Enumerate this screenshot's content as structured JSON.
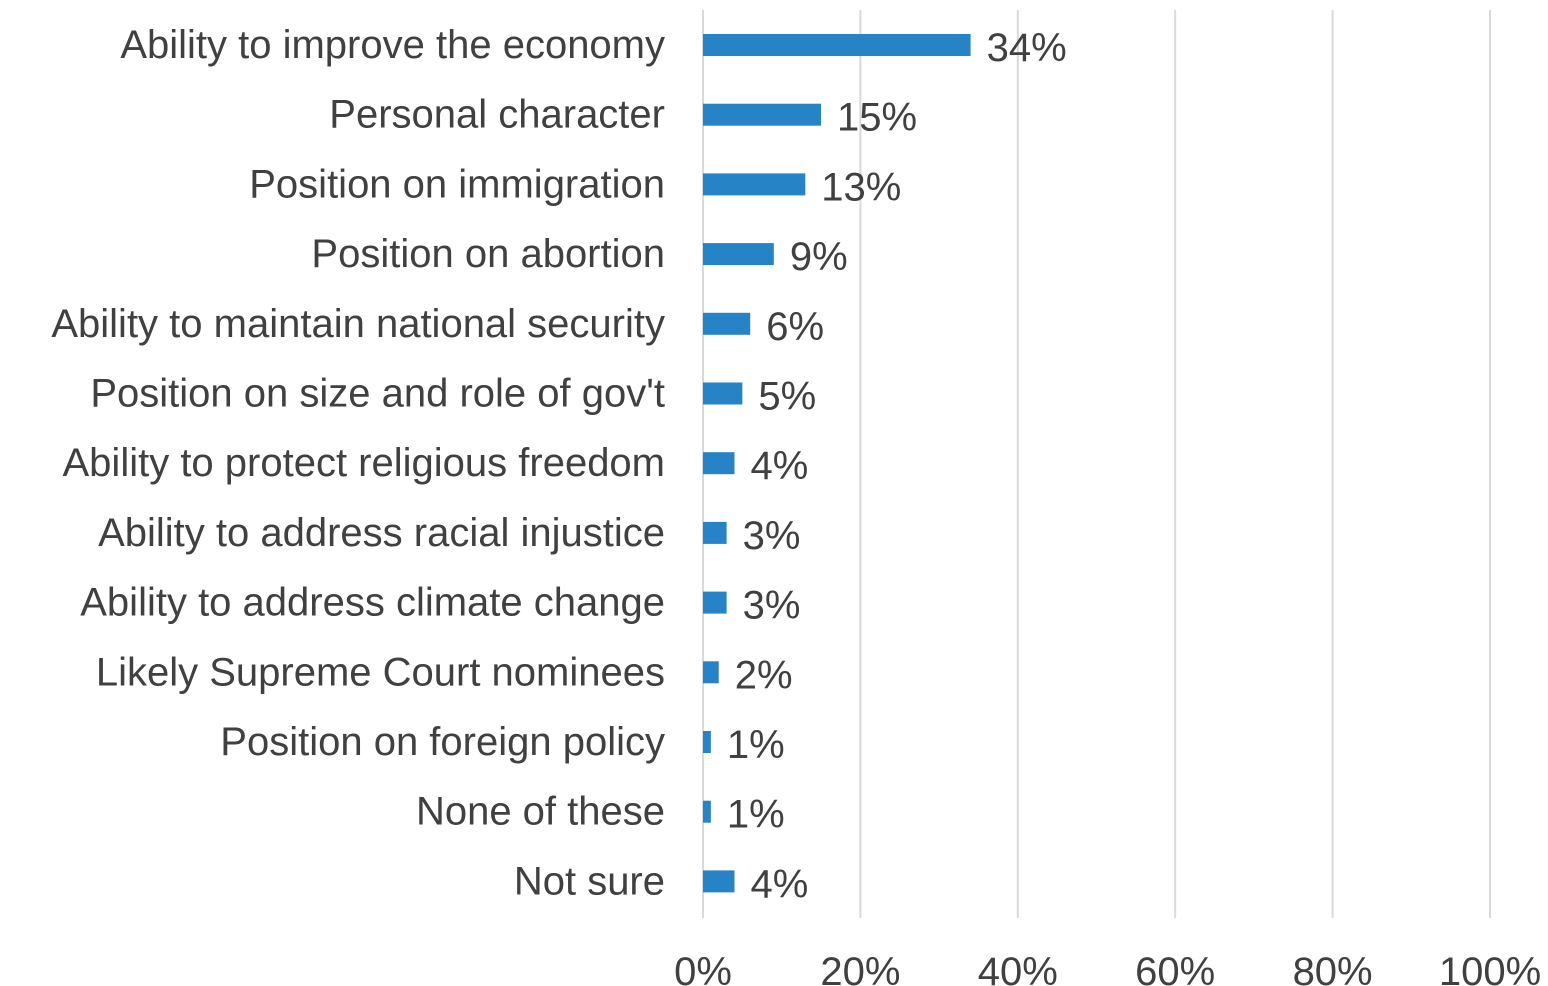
{
  "chart_data": {
    "type": "bar",
    "orientation": "horizontal",
    "title": "",
    "xlabel": "",
    "ylabel": "",
    "categories": [
      "Ability to improve the economy",
      "Personal character",
      "Position on immigration",
      "Position on abortion",
      "Ability to maintain national security",
      "Position on size and role of gov't",
      "Ability to protect religious freedom",
      "Ability to address racial injustice",
      "Ability to address climate change",
      "Likely Supreme Court nominees",
      "Position on foreign policy",
      "None of these",
      "Not sure"
    ],
    "values": [
      34,
      15,
      13,
      9,
      6,
      5,
      4,
      3,
      3,
      2,
      1,
      1,
      4
    ],
    "data_labels": [
      "34%",
      "15%",
      "13%",
      "9%",
      "6%",
      "5%",
      "4%",
      "3%",
      "3%",
      "2%",
      "1%",
      "1%",
      "4%"
    ],
    "xlim": [
      0,
      100
    ],
    "x_ticks": [
      0,
      20,
      40,
      60,
      80,
      100
    ],
    "x_tick_labels": [
      "0%",
      "20%",
      "40%",
      "60%",
      "80%",
      "100%"
    ],
    "grid": true,
    "legend": "none",
    "bar_color": "#2683c6",
    "text_color": "#404040",
    "grid_color": "#d9d9d9"
  }
}
